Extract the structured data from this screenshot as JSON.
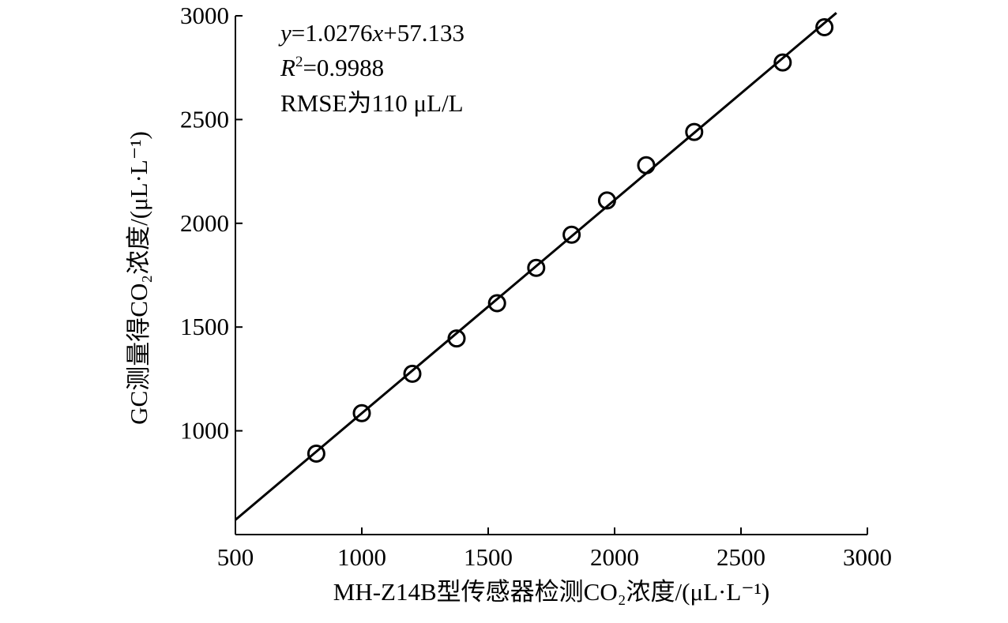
{
  "chart_data": {
    "type": "scatter",
    "xlabel": "MH-Z14B型传感器检测CO₂浓度/(μL·L⁻¹)",
    "ylabel": "GC测量得CO₂浓度/(μL·L⁻¹)",
    "xlim": [
      500,
      3000
    ],
    "ylim": [
      500,
      3000
    ],
    "xticks": [
      500,
      1000,
      1500,
      2000,
      2500,
      3000
    ],
    "yticks": [
      1000,
      1500,
      2000,
      2500,
      3000
    ],
    "points": [
      {
        "x": 820,
        "y": 890
      },
      {
        "x": 1000,
        "y": 1085
      },
      {
        "x": 1200,
        "y": 1275
      },
      {
        "x": 1375,
        "y": 1445
      },
      {
        "x": 1535,
        "y": 1615
      },
      {
        "x": 1690,
        "y": 1785
      },
      {
        "x": 1830,
        "y": 1945
      },
      {
        "x": 1970,
        "y": 2110
      },
      {
        "x": 2125,
        "y": 2280
      },
      {
        "x": 2315,
        "y": 2440
      },
      {
        "x": 2665,
        "y": 2775
      },
      {
        "x": 2830,
        "y": 2945
      }
    ],
    "fit": {
      "slope": 1.0276,
      "intercept": 57.133
    },
    "annotations": {
      "equation_y": "y",
      "equation_rest": "=1.0276",
      "equation_x": "x",
      "equation_tail": "+57.133",
      "r2_symbol": "R",
      "r2_sup": "2",
      "r2_value": "=0.9988",
      "rmse": "RMSE为110 μL/L"
    },
    "grid": false,
    "legend": "none"
  }
}
